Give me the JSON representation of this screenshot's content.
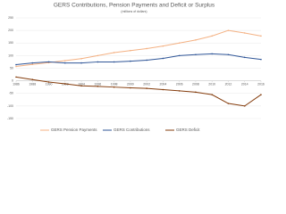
{
  "chart_data": {
    "type": "line",
    "title": "GERS Contributions, Pension Payments and Deficit or Surplus",
    "subtitle": "(millions of dollars)",
    "x": [
      1986,
      1988,
      1990,
      1992,
      1994,
      1996,
      1998,
      2000,
      2002,
      2004,
      2006,
      2008,
      2010,
      2012,
      2014,
      2016
    ],
    "xlim": [
      1986,
      2016
    ],
    "xticks": [
      1986,
      1988,
      1990,
      1992,
      1994,
      1996,
      1998,
      2000,
      2002,
      2004,
      2006,
      2008,
      2010,
      2012,
      2014,
      2016
    ],
    "ylim": [
      -150,
      250
    ],
    "yticks": [
      -150,
      -100,
      -50,
      0,
      50,
      100,
      150,
      200,
      250
    ],
    "grid": true,
    "legend": "bottom",
    "series": [
      {
        "name": "GERS Pension Payments",
        "color": "#f4b183",
        "values": [
          57,
          65,
          72,
          80,
          88,
          100,
          112,
          120,
          128,
          138,
          150,
          162,
          178,
          200,
          190,
          178
        ]
      },
      {
        "name": "GERS Contributions",
        "color": "#2f5597",
        "values": [
          64,
          71,
          75,
          71,
          71,
          75,
          75,
          78,
          82,
          89,
          100,
          104,
          107,
          104,
          93,
          85
        ]
      },
      {
        "name": "GERS Deficit",
        "color": "#843c0c",
        "values": [
          15,
          5,
          -5,
          -12,
          -20,
          -22,
          -25,
          -28,
          -30,
          -35,
          -40,
          -45,
          -55,
          -90,
          -100,
          -55
        ]
      }
    ]
  }
}
